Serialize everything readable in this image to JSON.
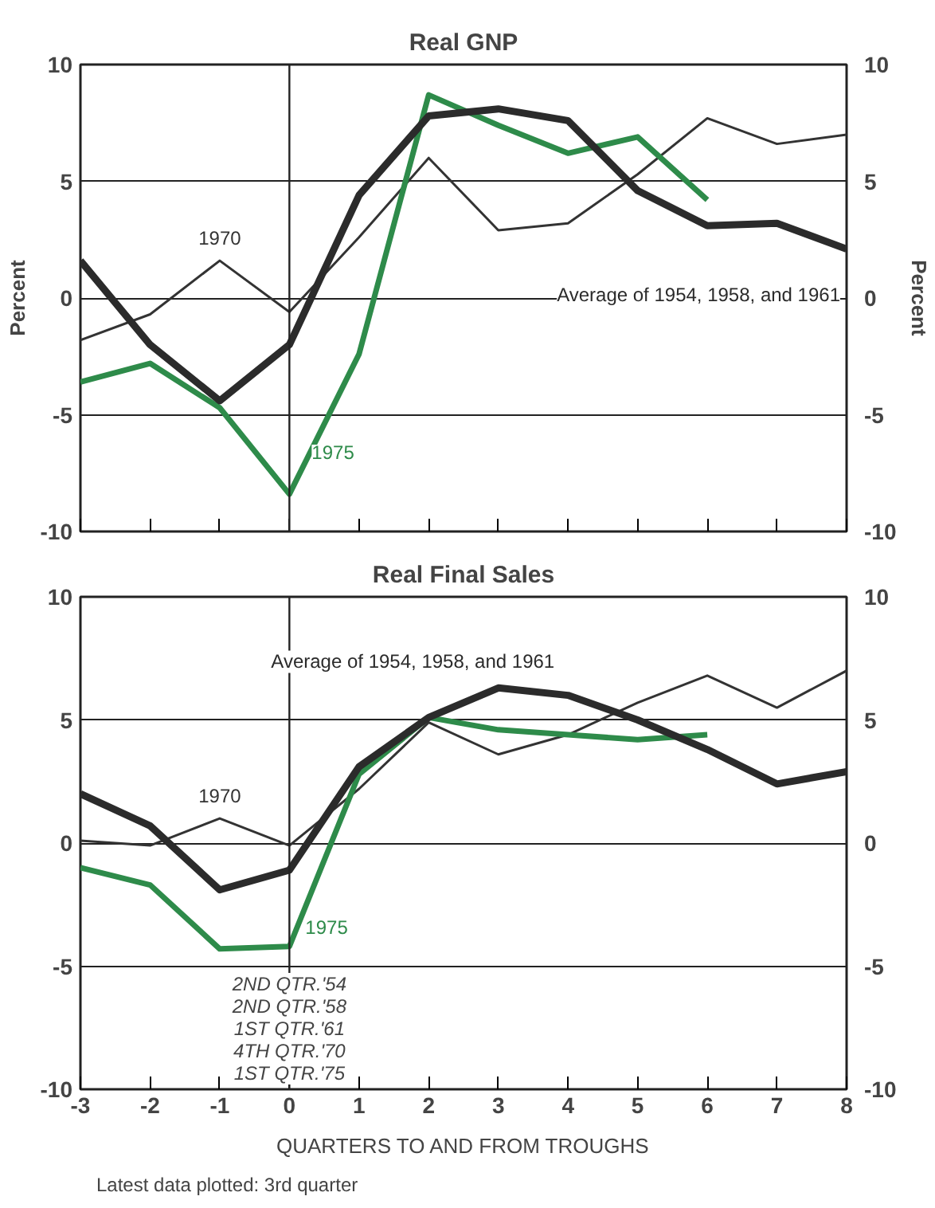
{
  "chart_data": [
    {
      "type": "line",
      "title": "Real GNP",
      "ylabel": "Percent",
      "y2label": "Percent",
      "x": [
        -3,
        -2,
        -1,
        0,
        1,
        2,
        3,
        4,
        5,
        6,
        7,
        8
      ],
      "xlim": [
        -3,
        8
      ],
      "xticks": [
        -3,
        -2,
        -1,
        0,
        1,
        2,
        3,
        4,
        5,
        6,
        7,
        8
      ],
      "ylim": [
        -10,
        10
      ],
      "yticks": [
        -10,
        -5,
        0,
        5,
        10
      ],
      "y2lim": [
        -10,
        10
      ],
      "y2ticks": [
        -10,
        -5,
        0,
        5,
        10
      ],
      "tick_labels": "y",
      "grid": "y",
      "legend": false,
      "marker": "none",
      "line_style": "solid",
      "ref_lines": [
        {
          "axis": "x",
          "value": 0,
          "color": "#222222"
        }
      ],
      "series": [
        {
          "name": "1970",
          "color": "#333333",
          "values": [
            -1.8,
            -0.7,
            1.6,
            -0.6,
            2.6,
            6.0,
            2.9,
            3.2,
            5.3,
            7.7,
            6.6,
            7.0
          ]
        },
        {
          "name": "1975",
          "color": "#2e8b4a",
          "values": [
            -3.6,
            -2.8,
            -4.7,
            -8.4,
            -2.4,
            8.7,
            7.4,
            6.2,
            6.9,
            4.2,
            null,
            null
          ]
        },
        {
          "name": "Average of 1954, 1958, and 1961",
          "color": "#2b2b2b",
          "values": [
            1.6,
            -2.0,
            -4.4,
            -2.0,
            4.4,
            7.8,
            8.1,
            7.6,
            4.6,
            3.1,
            3.2,
            2.1
          ]
        }
      ]
    },
    {
      "type": "line",
      "title": "Real Final Sales",
      "xlabel": "QUARTERS TO AND FROM TROUGHS",
      "x": [
        -3,
        -2,
        -1,
        0,
        1,
        2,
        3,
        4,
        5,
        6,
        7,
        8
      ],
      "xlim": [
        -3,
        8
      ],
      "xticks": [
        -3,
        -2,
        -1,
        0,
        1,
        2,
        3,
        4,
        5,
        6,
        7,
        8
      ],
      "ylim": [
        -10,
        10
      ],
      "yticks": [
        -10,
        -5,
        0,
        5,
        10
      ],
      "y2lim": [
        -10,
        10
      ],
      "y2ticks": [
        -10,
        -5,
        0,
        5,
        10
      ],
      "grid": "y",
      "legend": false,
      "marker": "none",
      "line_style": "solid",
      "ref_lines": [
        {
          "axis": "x",
          "value": 0,
          "color": "#222222"
        }
      ],
      "annotations": [
        "2ND QTR.'54",
        "2ND QTR.'58",
        "1ST QTR.'61",
        "4TH QTR.'70",
        "1ST QTR.'75",
        "Latest data plotted: 3rd quarter"
      ],
      "series": [
        {
          "name": "1970",
          "color": "#333333",
          "values": [
            0.1,
            -0.1,
            1.0,
            -0.1,
            2.2,
            4.9,
            3.6,
            4.4,
            5.7,
            6.8,
            5.5,
            7.0
          ]
        },
        {
          "name": "1975",
          "color": "#2e8b4a",
          "values": [
            -1.0,
            -1.7,
            -4.3,
            -4.2,
            2.8,
            5.1,
            4.6,
            4.4,
            4.2,
            4.4,
            null,
            null
          ]
        },
        {
          "name": "Average of 1954, 1958, and 1961",
          "color": "#2b2b2b",
          "values": [
            2.0,
            0.7,
            -1.9,
            -1.1,
            3.1,
            5.1,
            6.3,
            6.0,
            5.0,
            3.8,
            2.4,
            2.9
          ]
        }
      ]
    }
  ]
}
